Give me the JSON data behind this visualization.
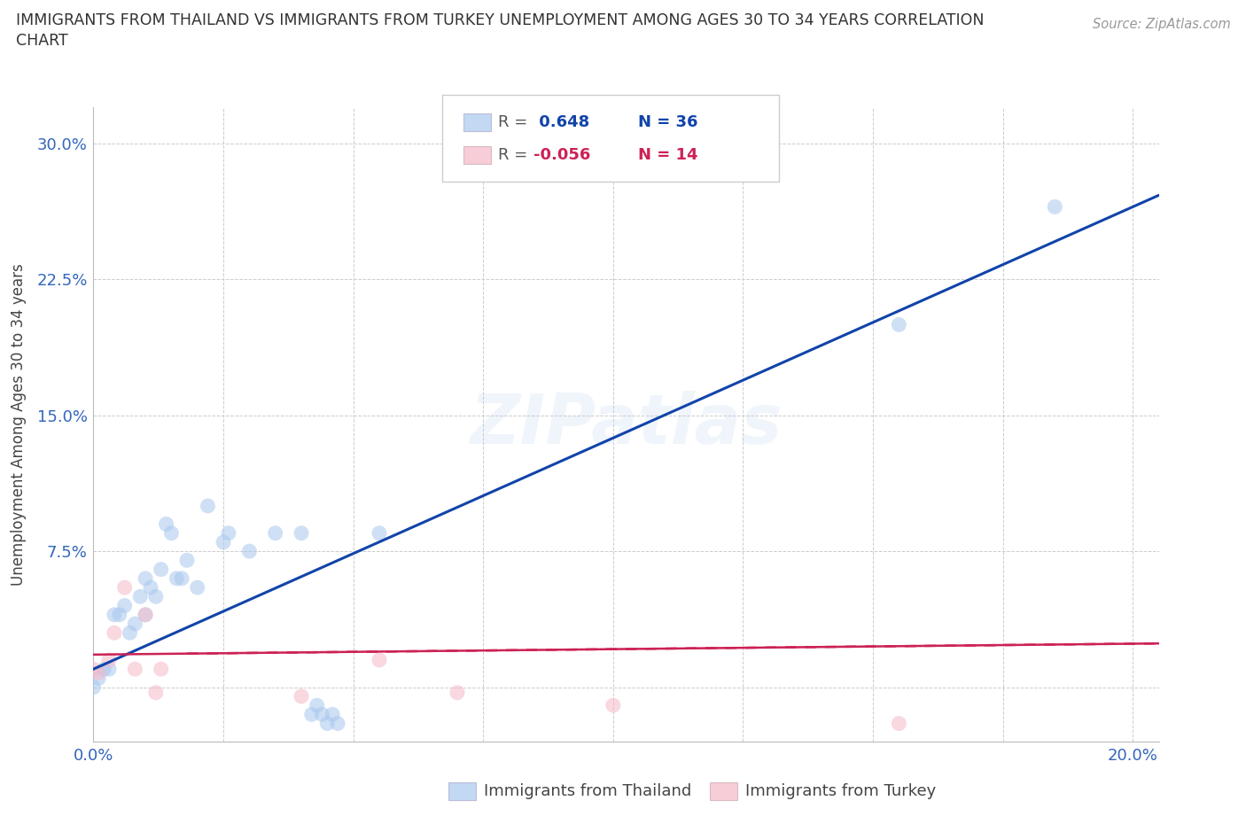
{
  "title_line1": "IMMIGRANTS FROM THAILAND VS IMMIGRANTS FROM TURKEY UNEMPLOYMENT AMONG AGES 30 TO 34 YEARS CORRELATION",
  "title_line2": "CHART",
  "source_text": "Source: ZipAtlas.com",
  "ylabel": "Unemployment Among Ages 30 to 34 years",
  "xlim": [
    0.0,
    0.205
  ],
  "ylim": [
    -0.03,
    0.32
  ],
  "xticks": [
    0.0,
    0.025,
    0.05,
    0.075,
    0.1,
    0.125,
    0.15,
    0.175,
    0.2
  ],
  "ytick_positions": [
    0.0,
    0.075,
    0.15,
    0.225,
    0.3
  ],
  "ytick_labels": [
    "",
    "7.5%",
    "15.0%",
    "22.5%",
    "30.0%"
  ],
  "color_thailand": "#A8C8EE",
  "color_turkey": "#F5B8C8",
  "color_line_thailand": "#1144AA",
  "color_line_turkey": "#CC2255",
  "r_thailand": 0.648,
  "n_thailand": 36,
  "r_turkey": -0.056,
  "n_turkey": 14,
  "thailand_x": [
    0.0,
    0.001,
    0.002,
    0.003,
    0.004,
    0.005,
    0.006,
    0.007,
    0.008,
    0.009,
    0.01,
    0.01,
    0.011,
    0.012,
    0.013,
    0.014,
    0.015,
    0.016,
    0.017,
    0.018,
    0.02,
    0.022,
    0.025,
    0.026,
    0.03,
    0.035,
    0.04,
    0.042,
    0.043,
    0.044,
    0.045,
    0.046,
    0.047,
    0.055,
    0.155,
    0.185
  ],
  "thailand_y": [
    0.0,
    0.005,
    0.01,
    0.01,
    0.04,
    0.04,
    0.045,
    0.03,
    0.035,
    0.05,
    0.04,
    0.06,
    0.055,
    0.05,
    0.065,
    0.09,
    0.085,
    0.06,
    0.06,
    0.07,
    0.055,
    0.1,
    0.08,
    0.085,
    0.075,
    0.085,
    0.085,
    -0.015,
    -0.01,
    -0.015,
    -0.02,
    -0.015,
    -0.02,
    0.085,
    0.2,
    0.265
  ],
  "turkey_x": [
    0.0,
    0.001,
    0.003,
    0.004,
    0.006,
    0.008,
    0.01,
    0.012,
    0.013,
    0.04,
    0.055,
    0.07,
    0.1,
    0.155
  ],
  "turkey_y": [
    0.01,
    0.008,
    0.015,
    0.03,
    0.055,
    0.01,
    0.04,
    -0.003,
    0.01,
    -0.005,
    0.015,
    -0.003,
    -0.01,
    -0.02
  ]
}
